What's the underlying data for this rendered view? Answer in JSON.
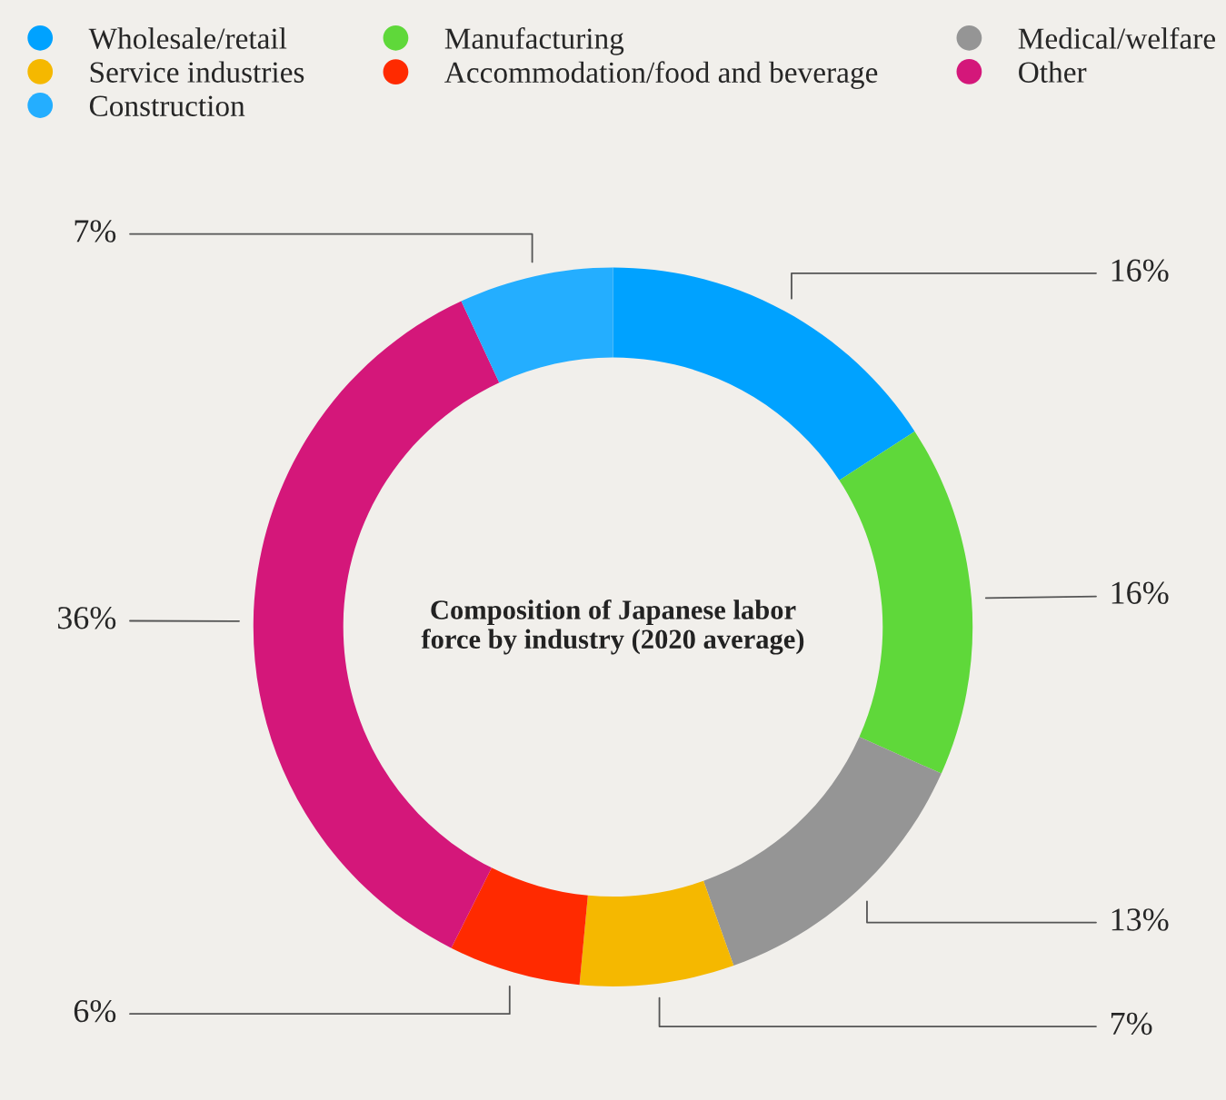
{
  "chart_data": {
    "type": "donut",
    "title": "Composition of Japanese labor force by industry (2020 average)",
    "categories": [
      "Wholesale/retail",
      "Manufacturing",
      "Medical/welfare",
      "Service industries",
      "Accommodation/food and beverage",
      "Other",
      "Construction"
    ],
    "values": [
      16,
      16,
      13,
      7,
      6,
      36,
      7
    ],
    "colors": [
      "#00a2ff",
      "#5fd83a",
      "#959595",
      "#f5b800",
      "#ff2a00",
      "#d4177a",
      "#24aeff"
    ],
    "value_labels": [
      "16%",
      "16%",
      "13%",
      "7%",
      "6%",
      "36%",
      "7%"
    ],
    "legend": "top"
  }
}
